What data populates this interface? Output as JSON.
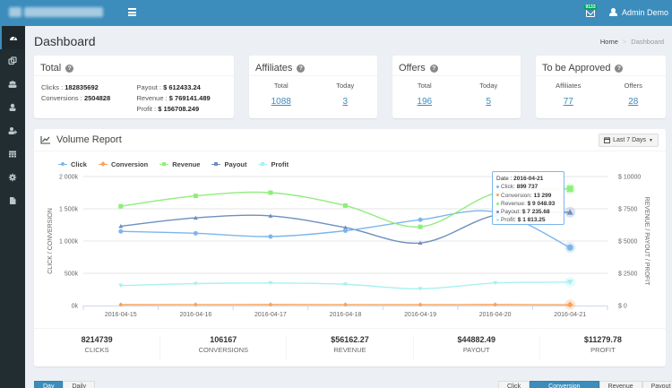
{
  "header": {
    "brand": "AppName (obscured)",
    "mail_badge": "9133",
    "user_name": "Admin Demo"
  },
  "sidebar": {
    "items": [
      {
        "icon": "dashboard-icon",
        "active": true
      },
      {
        "icon": "offers-icon",
        "active": false
      },
      {
        "icon": "users-group-icon",
        "active": false
      },
      {
        "icon": "user-icon",
        "active": false
      },
      {
        "icon": "user-add-icon",
        "active": false
      },
      {
        "icon": "table-icon",
        "active": false
      },
      {
        "icon": "gear-icon",
        "active": false
      },
      {
        "icon": "document-icon",
        "active": false
      }
    ]
  },
  "page": {
    "title": "Dashboard",
    "breadcrumb": {
      "home": "Home",
      "separator": ">",
      "current": "Dashboard"
    }
  },
  "total": {
    "title": "Total",
    "help": "?",
    "clicks_label": "Clicks : ",
    "clicks": "182835692",
    "conversions_label": "Conversions : ",
    "conversions": "2504828",
    "payout_label": "Payout : ",
    "payout": "$ 612433.24",
    "revenue_label": "Revenue : ",
    "revenue": "$ 769141.489",
    "profit_label": "Profit : ",
    "profit": "$ 156708.249"
  },
  "affiliates": {
    "title": "Affiliates",
    "help": "?",
    "total_label": "Total",
    "total": "1088",
    "today_label": "Today",
    "today": "3"
  },
  "offers": {
    "title": "Offers",
    "help": "?",
    "total_label": "Total",
    "total": "196",
    "today_label": "Today",
    "today": "5"
  },
  "approval": {
    "title": "To be Approved",
    "help": "?",
    "affiliates_label": "Affiliates",
    "affiliates": "77",
    "offers_label": "Offers",
    "offers": "28"
  },
  "volume": {
    "title": "Volume Report",
    "date_range": "Last 7 Days",
    "tooltip": {
      "date_label": "Date : ",
      "date": "2016-04-21",
      "rows": [
        {
          "label": "Click: ",
          "value": "899 737",
          "color": "#7cb5ec"
        },
        {
          "label": "Conversion: ",
          "value": "13 299",
          "color": "#f7a35c"
        },
        {
          "label": "Revenue: ",
          "value": "$ 9 048.93",
          "color": "#90ed7d"
        },
        {
          "label": "Payout: ",
          "value": "$ 7 235.68",
          "color": "#6f8fbf"
        },
        {
          "label": "Profit: ",
          "value": "$ 1 813.25",
          "color": "#a8f0f0"
        }
      ]
    },
    "summary": [
      {
        "value": "8214739",
        "label": "CLICKS"
      },
      {
        "value": "106167",
        "label": "CONVERSIONS"
      },
      {
        "value": "$56162.27",
        "label": "REVENUE"
      },
      {
        "value": "$44882.49",
        "label": "PAYOUT"
      },
      {
        "value": "$11279.78",
        "label": "PROFIT"
      }
    ]
  },
  "bottom_tabs": {
    "left": [
      {
        "label": "Day",
        "active": true
      },
      {
        "label": "Daily",
        "active": false
      }
    ],
    "right": [
      {
        "label": "Click",
        "active": false
      },
      {
        "label": "Conversion",
        "active": true
      },
      {
        "label": "Revenue",
        "active": false
      },
      {
        "label": "Payout",
        "active": false
      }
    ]
  },
  "chart_data": {
    "type": "line",
    "title": "Volume Report",
    "categories": [
      "2016-04-15",
      "2016-04-16",
      "2016-04-17",
      "2016-04-18",
      "2016-04-19",
      "2016-04-20",
      "2016-04-21"
    ],
    "left_axis": {
      "label": "CLICK / CONVERSION",
      "ticks": [
        "0k",
        "500k",
        "1 000k",
        "1 500k",
        "2 000k"
      ],
      "range": [
        0,
        2000000
      ]
    },
    "right_axis": {
      "label": "REVENUE / PAYOUT / PROFIT",
      "ticks": [
        "$ 0",
        "$ 2500",
        "$ 5000",
        "$ 7500",
        "$ 10000"
      ],
      "range": [
        0,
        10000
      ]
    },
    "legend_position": "top-left",
    "grid": true,
    "series": [
      {
        "name": "Click",
        "axis": "left",
        "color": "#7cb5ec",
        "marker": "circle",
        "values": [
          1150000,
          1120000,
          1070000,
          1160000,
          1330000,
          1450000,
          899737
        ]
      },
      {
        "name": "Conversion",
        "axis": "left",
        "color": "#f7a35c",
        "marker": "diamond",
        "values": [
          14000,
          15000,
          15500,
          15000,
          14500,
          15500,
          13299
        ]
      },
      {
        "name": "Revenue",
        "axis": "right",
        "color": "#90ed7d",
        "marker": "square",
        "values": [
          7700,
          8500,
          8750,
          7750,
          6100,
          8700,
          9048.93
        ]
      },
      {
        "name": "Payout",
        "axis": "right",
        "color": "#6f8fbf",
        "marker": "triangle",
        "values": [
          6150,
          6800,
          6950,
          6050,
          4850,
          7000,
          7235.68
        ]
      },
      {
        "name": "Profit",
        "axis": "right",
        "color": "#a8f0f0",
        "marker": "triangle-down",
        "values": [
          1550,
          1700,
          1750,
          1650,
          1300,
          1750,
          1813.25
        ]
      }
    ],
    "highlighted_point": "2016-04-21"
  }
}
